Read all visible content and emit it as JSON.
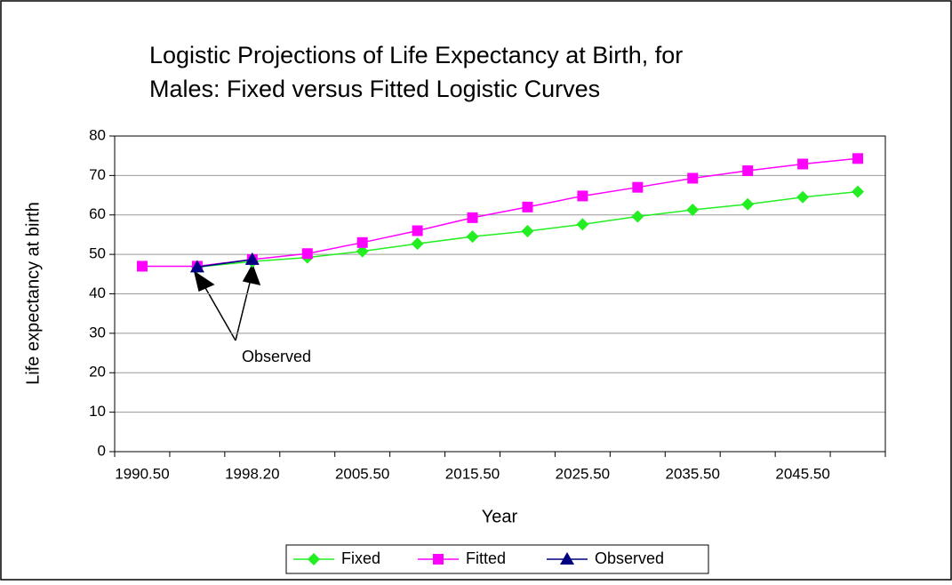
{
  "chart_data": {
    "type": "line",
    "title": [
      "Logistic Projections of Life Expectancy at Birth, for",
      "Males:  Fixed versus Fitted Logistic Curves"
    ],
    "x_label": "Year",
    "y_label": "Life expectancy at birth",
    "annotation": "Observed",
    "categories": [
      "1990.50",
      null,
      "1998.20",
      null,
      "2005.50",
      null,
      "2015.50",
      null,
      "2025.50",
      null,
      "2035.50",
      null,
      "2045.50",
      null
    ],
    "series": [
      {
        "name": "Fixed",
        "color": "#22ee22",
        "marker": "diamond",
        "values": [
          null,
          46.8,
          48.2,
          49.2,
          50.8,
          52.7,
          54.5,
          55.9,
          57.6,
          59.6,
          61.3,
          62.7,
          64.5,
          65.9
        ]
      },
      {
        "name": "Fitted",
        "color": "#ff00ff",
        "marker": "square",
        "values": [
          47,
          47,
          48.7,
          50.2,
          53,
          56,
          59.3,
          62,
          64.8,
          67,
          69.3,
          71.2,
          72.9,
          74.3
        ]
      },
      {
        "name": "Observed",
        "color": "#000080",
        "marker": "triangle",
        "values": [
          null,
          46.8,
          48.7,
          null,
          null,
          null,
          null,
          null,
          null,
          null,
          null,
          null,
          null,
          null
        ]
      }
    ],
    "ylim": [
      0,
      80
    ],
    "yticks": [
      0,
      10,
      20,
      30,
      40,
      50,
      60,
      70,
      80
    ],
    "grid": true,
    "legend": "bottom"
  }
}
